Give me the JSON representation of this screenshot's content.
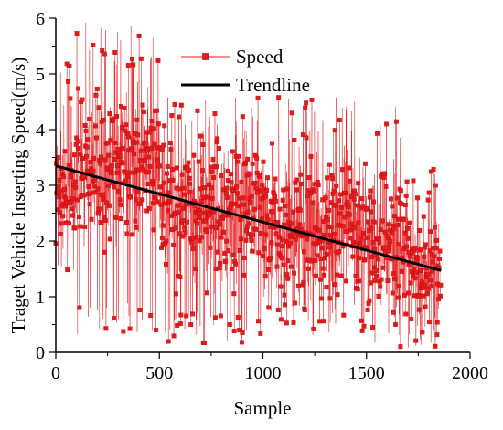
{
  "chart_data": {
    "type": "line",
    "xlabel": "Sample",
    "ylabel": "Traget Vehicle Inserting Speed(m/s)",
    "xlim": [
      0,
      2000
    ],
    "ylim": [
      0,
      6
    ],
    "x_ticks": [
      0,
      500,
      1000,
      1500,
      2000
    ],
    "y_ticks": [
      0,
      1,
      2,
      3,
      4,
      5,
      6
    ],
    "grid": false,
    "legend_position": "top-center",
    "series": [
      {
        "name": "Speed",
        "color": "#e41a1c",
        "marker": "square",
        "n_points": 1860,
        "segments": [
          {
            "x_range": [
              0,
              100
            ],
            "mean": 2.9,
            "spread": 0.75,
            "min": 1.4,
            "max": 5.2
          },
          {
            "x_range": [
              100,
              500
            ],
            "mean": 3.3,
            "spread": 1.0,
            "min": 0.3,
            "max": 5.95
          },
          {
            "x_range": [
              500,
              1000
            ],
            "mean": 2.6,
            "spread": 1.0,
            "min": 0.15,
            "max": 4.6
          },
          {
            "x_range": [
              1000,
              1500
            ],
            "mean": 2.2,
            "spread": 1.05,
            "min": 0.3,
            "max": 4.6
          },
          {
            "x_range": [
              1500,
              1700
            ],
            "mean": 2.0,
            "spread": 1.1,
            "min": 0.1,
            "max": 4.55
          },
          {
            "x_range": [
              1700,
              1860
            ],
            "mean": 1.5,
            "spread": 0.75,
            "min": 0.05,
            "max": 3.5
          }
        ]
      },
      {
        "name": "Trendline",
        "color": "#000000",
        "x": [
          0,
          1860
        ],
        "y": [
          3.35,
          1.47
        ]
      }
    ]
  }
}
